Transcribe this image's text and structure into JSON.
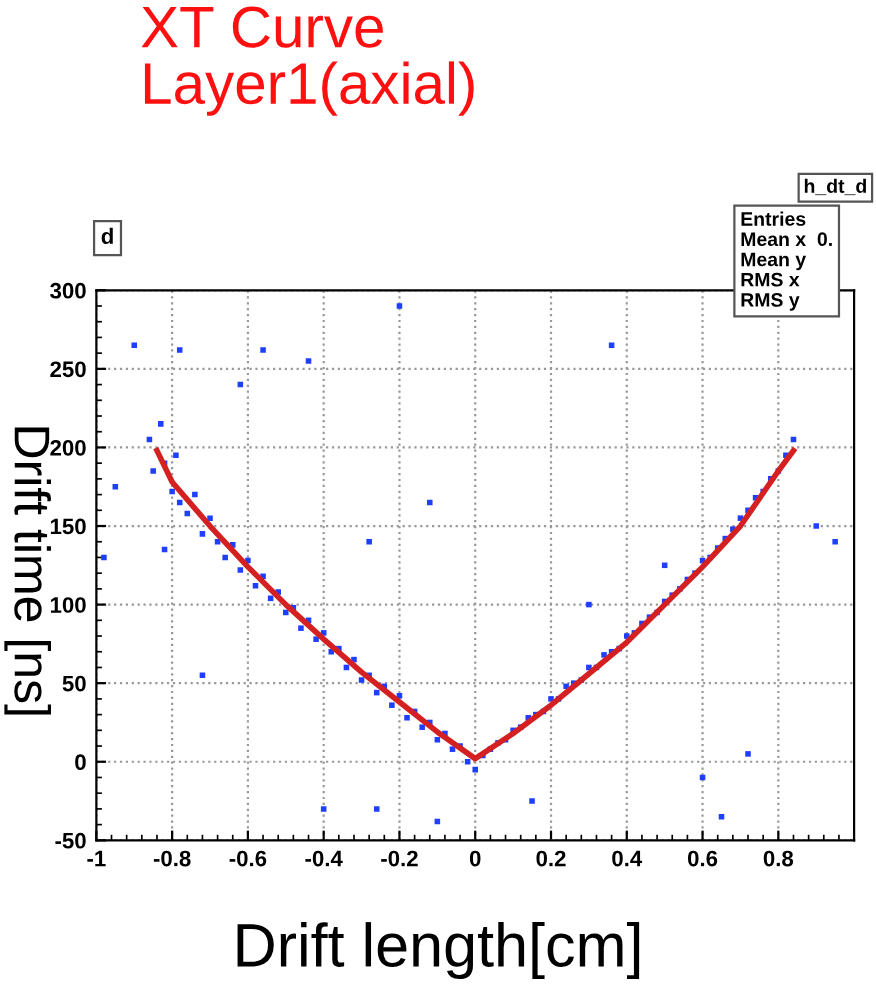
{
  "chart_data": {
    "type": "scatter",
    "title": "XT Curve\nLayer1(axial)",
    "xlabel": "Drift length[cm]",
    "ylabel": "Drift time [ns]",
    "xlim": [
      -1,
      1
    ],
    "ylim": [
      -50,
      300
    ],
    "xticks": [
      -1,
      -0.8,
      -0.6,
      -0.4,
      -0.2,
      0,
      0.2,
      0.4,
      0.6,
      0.8
    ],
    "yticks": [
      -50,
      0,
      50,
      100,
      150,
      200,
      250,
      300
    ],
    "grid": true,
    "annotations": [
      "d",
      "h_dt_d",
      "Entries",
      "Mean x  0.",
      "Mean y",
      "RMS x",
      "RMS y"
    ],
    "series": [
      {
        "marker": "square",
        "color": "#1f3fff",
        "x": [
          -0.86,
          -0.85,
          -0.83,
          -0.82,
          -0.8,
          -0.79,
          -0.78,
          -0.76,
          -0.74,
          -0.72,
          -0.7,
          -0.68,
          -0.66,
          -0.64,
          -0.62,
          -0.6,
          -0.58,
          -0.56,
          -0.54,
          -0.52,
          -0.5,
          -0.48,
          -0.46,
          -0.44,
          -0.42,
          -0.4,
          -0.38,
          -0.36,
          -0.34,
          -0.32,
          -0.3,
          -0.28,
          -0.26,
          -0.24,
          -0.22,
          -0.2,
          -0.18,
          -0.16,
          -0.14,
          -0.12,
          -0.1,
          -0.08,
          -0.06,
          -0.04,
          -0.02,
          0.0,
          0.02,
          0.04,
          0.06,
          0.08,
          0.1,
          0.12,
          0.14,
          0.16,
          0.18,
          0.2,
          0.22,
          0.24,
          0.26,
          0.28,
          0.3,
          0.32,
          0.34,
          0.36,
          0.38,
          0.4,
          0.42,
          0.44,
          0.46,
          0.48,
          0.5,
          0.52,
          0.54,
          0.56,
          0.58,
          0.6,
          0.62,
          0.64,
          0.66,
          0.68,
          0.7,
          0.72,
          0.74,
          0.76,
          0.78,
          0.8,
          0.82,
          0.84,
          -0.9,
          -0.78,
          -0.56,
          -0.44,
          -0.2,
          -0.12,
          0.36,
          -0.95,
          -0.98,
          -0.82,
          -0.72,
          -0.62,
          0.72,
          0.95,
          0.9,
          0.5,
          -0.4,
          -0.26,
          0.15,
          0.65,
          -0.1,
          0.3,
          -0.28,
          0.6
        ],
        "values": [
          205,
          185,
          215,
          190,
          172,
          195,
          165,
          158,
          170,
          145,
          155,
          140,
          130,
          138,
          122,
          128,
          112,
          118,
          104,
          108,
          95,
          98,
          85,
          90,
          78,
          82,
          70,
          72,
          60,
          65,
          52,
          55,
          44,
          48,
          36,
          42,
          28,
          32,
          22,
          25,
          14,
          18,
          8,
          10,
          0,
          -5,
          4,
          8,
          12,
          14,
          20,
          22,
          28,
          30,
          32,
          40,
          40,
          48,
          50,
          52,
          60,
          60,
          68,
          70,
          72,
          80,
          82,
          88,
          92,
          95,
          102,
          106,
          110,
          116,
          120,
          128,
          130,
          136,
          142,
          148,
          155,
          160,
          168,
          172,
          180,
          185,
          195,
          205,
          265,
          262,
          262,
          255,
          290,
          165,
          265,
          175,
          130,
          135,
          55,
          240,
          5,
          140,
          150,
          125,
          -30,
          -30,
          -25,
          -35,
          -38,
          100,
          140,
          -10
        ]
      },
      {
        "type": "line",
        "color": "#d42020",
        "x": [
          -0.84,
          -0.8,
          -0.7,
          -0.6,
          -0.5,
          -0.4,
          -0.3,
          -0.2,
          -0.1,
          0.0,
          0.1,
          0.2,
          0.3,
          0.4,
          0.5,
          0.6,
          0.7,
          0.8,
          0.84
        ],
        "values": [
          198,
          178,
          150,
          124,
          100,
          78,
          57,
          38,
          19,
          2,
          18,
          36,
          56,
          76,
          100,
          124,
          150,
          185,
          198
        ]
      }
    ]
  }
}
